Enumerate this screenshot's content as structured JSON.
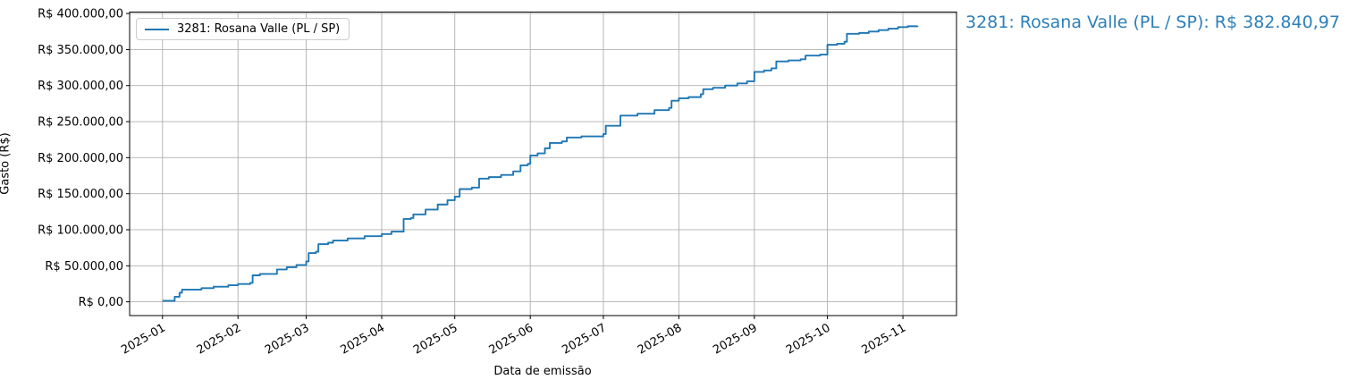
{
  "annotation": {
    "text": "3281: Rosana Valle (PL / SP): R$ 382.840,97",
    "color": "#2d7fb8"
  },
  "chart_data": {
    "type": "line",
    "line_style": "step-post",
    "title": "",
    "xlabel": "Data de emissão",
    "ylabel": "Gasto (R$)",
    "grid": true,
    "grid_color": "#b0b0b0",
    "line_color": "#1f77b4",
    "legend": {
      "position": "upper left",
      "entries": [
        "3281: Rosana Valle (PL / SP)"
      ]
    },
    "x_unit": "days since 2025-01-01",
    "xlim": [
      -13.5,
      326
    ],
    "ylim": [
      -19100,
      402000
    ],
    "x_ticks": [
      {
        "day": 0,
        "label": "2025-01"
      },
      {
        "day": 31,
        "label": "2025-02"
      },
      {
        "day": 59,
        "label": "2025-03"
      },
      {
        "day": 90,
        "label": "2025-04"
      },
      {
        "day": 120,
        "label": "2025-05"
      },
      {
        "day": 151,
        "label": "2025-06"
      },
      {
        "day": 181,
        "label": "2025-07"
      },
      {
        "day": 212,
        "label": "2025-08"
      },
      {
        "day": 243,
        "label": "2025-09"
      },
      {
        "day": 273,
        "label": "2025-10"
      },
      {
        "day": 304,
        "label": "2025-11"
      }
    ],
    "y_ticks": [
      {
        "value": 0,
        "label": "R$ 0,00"
      },
      {
        "value": 50000,
        "label": "R$ 50.000,00"
      },
      {
        "value": 100000,
        "label": "R$ 100.000,00"
      },
      {
        "value": 150000,
        "label": "R$ 150.000,00"
      },
      {
        "value": 200000,
        "label": "R$ 200.000,00"
      },
      {
        "value": 250000,
        "label": "R$ 250.000,00"
      },
      {
        "value": 300000,
        "label": "R$ 300.000,00"
      },
      {
        "value": 350000,
        "label": "R$ 350.000,00"
      },
      {
        "value": 400000,
        "label": "R$ 400.000,00"
      }
    ],
    "series": [
      {
        "name": "3281: Rosana Valle (PL / SP)",
        "final_value": 382840.97,
        "final_value_label": "R$ 382.840,97",
        "points": [
          [
            0,
            1500
          ],
          [
            5,
            7000
          ],
          [
            7,
            12600
          ],
          [
            8,
            17000
          ],
          [
            16,
            19000
          ],
          [
            21,
            21000
          ],
          [
            27,
            23000
          ],
          [
            31,
            24700
          ],
          [
            36,
            26300
          ],
          [
            37,
            36700
          ],
          [
            40,
            38700
          ],
          [
            47,
            44900
          ],
          [
            51,
            48000
          ],
          [
            55,
            51000
          ],
          [
            59,
            56000
          ],
          [
            60,
            67700
          ],
          [
            63,
            69600
          ],
          [
            64,
            80000
          ],
          [
            68,
            82000
          ],
          [
            70,
            85000
          ],
          [
            76,
            88000
          ],
          [
            83,
            91000
          ],
          [
            90,
            94000
          ],
          [
            94,
            97400
          ],
          [
            99,
            115000
          ],
          [
            102,
            116300
          ],
          [
            103,
            121300
          ],
          [
            108,
            128000
          ],
          [
            113,
            135000
          ],
          [
            117,
            141000
          ],
          [
            120,
            146000
          ],
          [
            122,
            156400
          ],
          [
            127,
            158500
          ],
          [
            130,
            170900
          ],
          [
            134,
            173000
          ],
          [
            139,
            176000
          ],
          [
            144,
            181000
          ],
          [
            147,
            189400
          ],
          [
            150,
            191500
          ],
          [
            151,
            203000
          ],
          [
            154,
            206000
          ],
          [
            157,
            213000
          ],
          [
            159,
            220400
          ],
          [
            164,
            222500
          ],
          [
            166,
            227900
          ],
          [
            172,
            229500
          ],
          [
            181,
            232800
          ],
          [
            182,
            244300
          ],
          [
            188,
            258400
          ],
          [
            195,
            261000
          ],
          [
            202,
            266000
          ],
          [
            208,
            269100
          ],
          [
            209,
            279000
          ],
          [
            212,
            282400
          ],
          [
            216,
            284000
          ],
          [
            221,
            288000
          ],
          [
            222,
            295000
          ],
          [
            226,
            297000
          ],
          [
            231,
            300000
          ],
          [
            236,
            303000
          ],
          [
            240,
            306000
          ],
          [
            243,
            319000
          ],
          [
            247,
            321000
          ],
          [
            250,
            324000
          ],
          [
            252,
            333500
          ],
          [
            257,
            335000
          ],
          [
            262,
            336500
          ],
          [
            264,
            341600
          ],
          [
            270,
            343000
          ],
          [
            273,
            356700
          ],
          [
            277,
            358000
          ],
          [
            280,
            360800
          ],
          [
            281,
            371800
          ],
          [
            286,
            373000
          ],
          [
            290,
            375000
          ],
          [
            294,
            377000
          ],
          [
            298,
            379000
          ],
          [
            302,
            381200
          ],
          [
            306,
            382300
          ],
          [
            310,
            382840.97
          ]
        ]
      }
    ]
  }
}
